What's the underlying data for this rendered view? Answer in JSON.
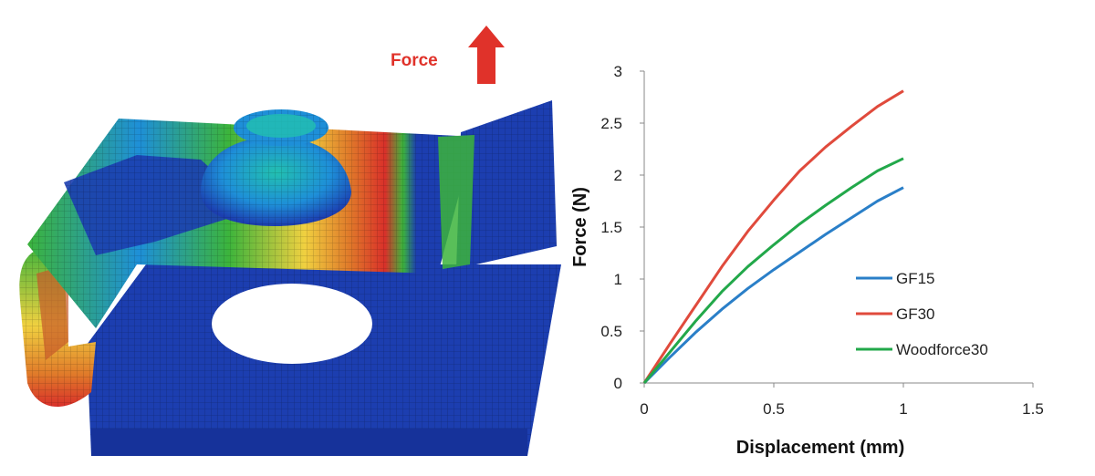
{
  "fea": {
    "force_label": "Force",
    "force_label_color": "#e0322a",
    "arrow_color": "#e0322a",
    "plate_color": "#1c3eb0",
    "stress_colors": [
      "#1c3eb0",
      "#1e8fd8",
      "#22c0b0",
      "#3cb43c",
      "#f0d040",
      "#e07a2a",
      "#d9302a"
    ]
  },
  "chart_data": {
    "type": "line",
    "title": "",
    "xlabel": "Displacement (mm)",
    "ylabel": "Force (N)",
    "xlim": [
      0,
      1.5
    ],
    "ylim": [
      0,
      3
    ],
    "xticks": [
      "0",
      "0.5",
      "1",
      "1.5"
    ],
    "yticks": [
      "0",
      "0.5",
      "1",
      "1.5",
      "2",
      "2.5",
      "3"
    ],
    "grid": false,
    "legend_position": "right",
    "x": [
      0,
      0.1,
      0.2,
      0.3,
      0.4,
      0.5,
      0.6,
      0.7,
      0.8,
      0.9,
      1.0
    ],
    "series": [
      {
        "name": "GF15",
        "color": "#2a7fc8",
        "values": [
          0,
          0.25,
          0.49,
          0.71,
          0.91,
          1.09,
          1.26,
          1.43,
          1.59,
          1.75,
          1.88
        ]
      },
      {
        "name": "GF30",
        "color": "#e04a3c",
        "values": [
          0,
          0.38,
          0.75,
          1.12,
          1.46,
          1.76,
          2.04,
          2.27,
          2.47,
          2.66,
          2.81
        ]
      },
      {
        "name": "Woodforce30",
        "color": "#22a84a",
        "values": [
          0,
          0.3,
          0.6,
          0.88,
          1.12,
          1.33,
          1.53,
          1.71,
          1.88,
          2.04,
          2.16
        ]
      }
    ]
  }
}
